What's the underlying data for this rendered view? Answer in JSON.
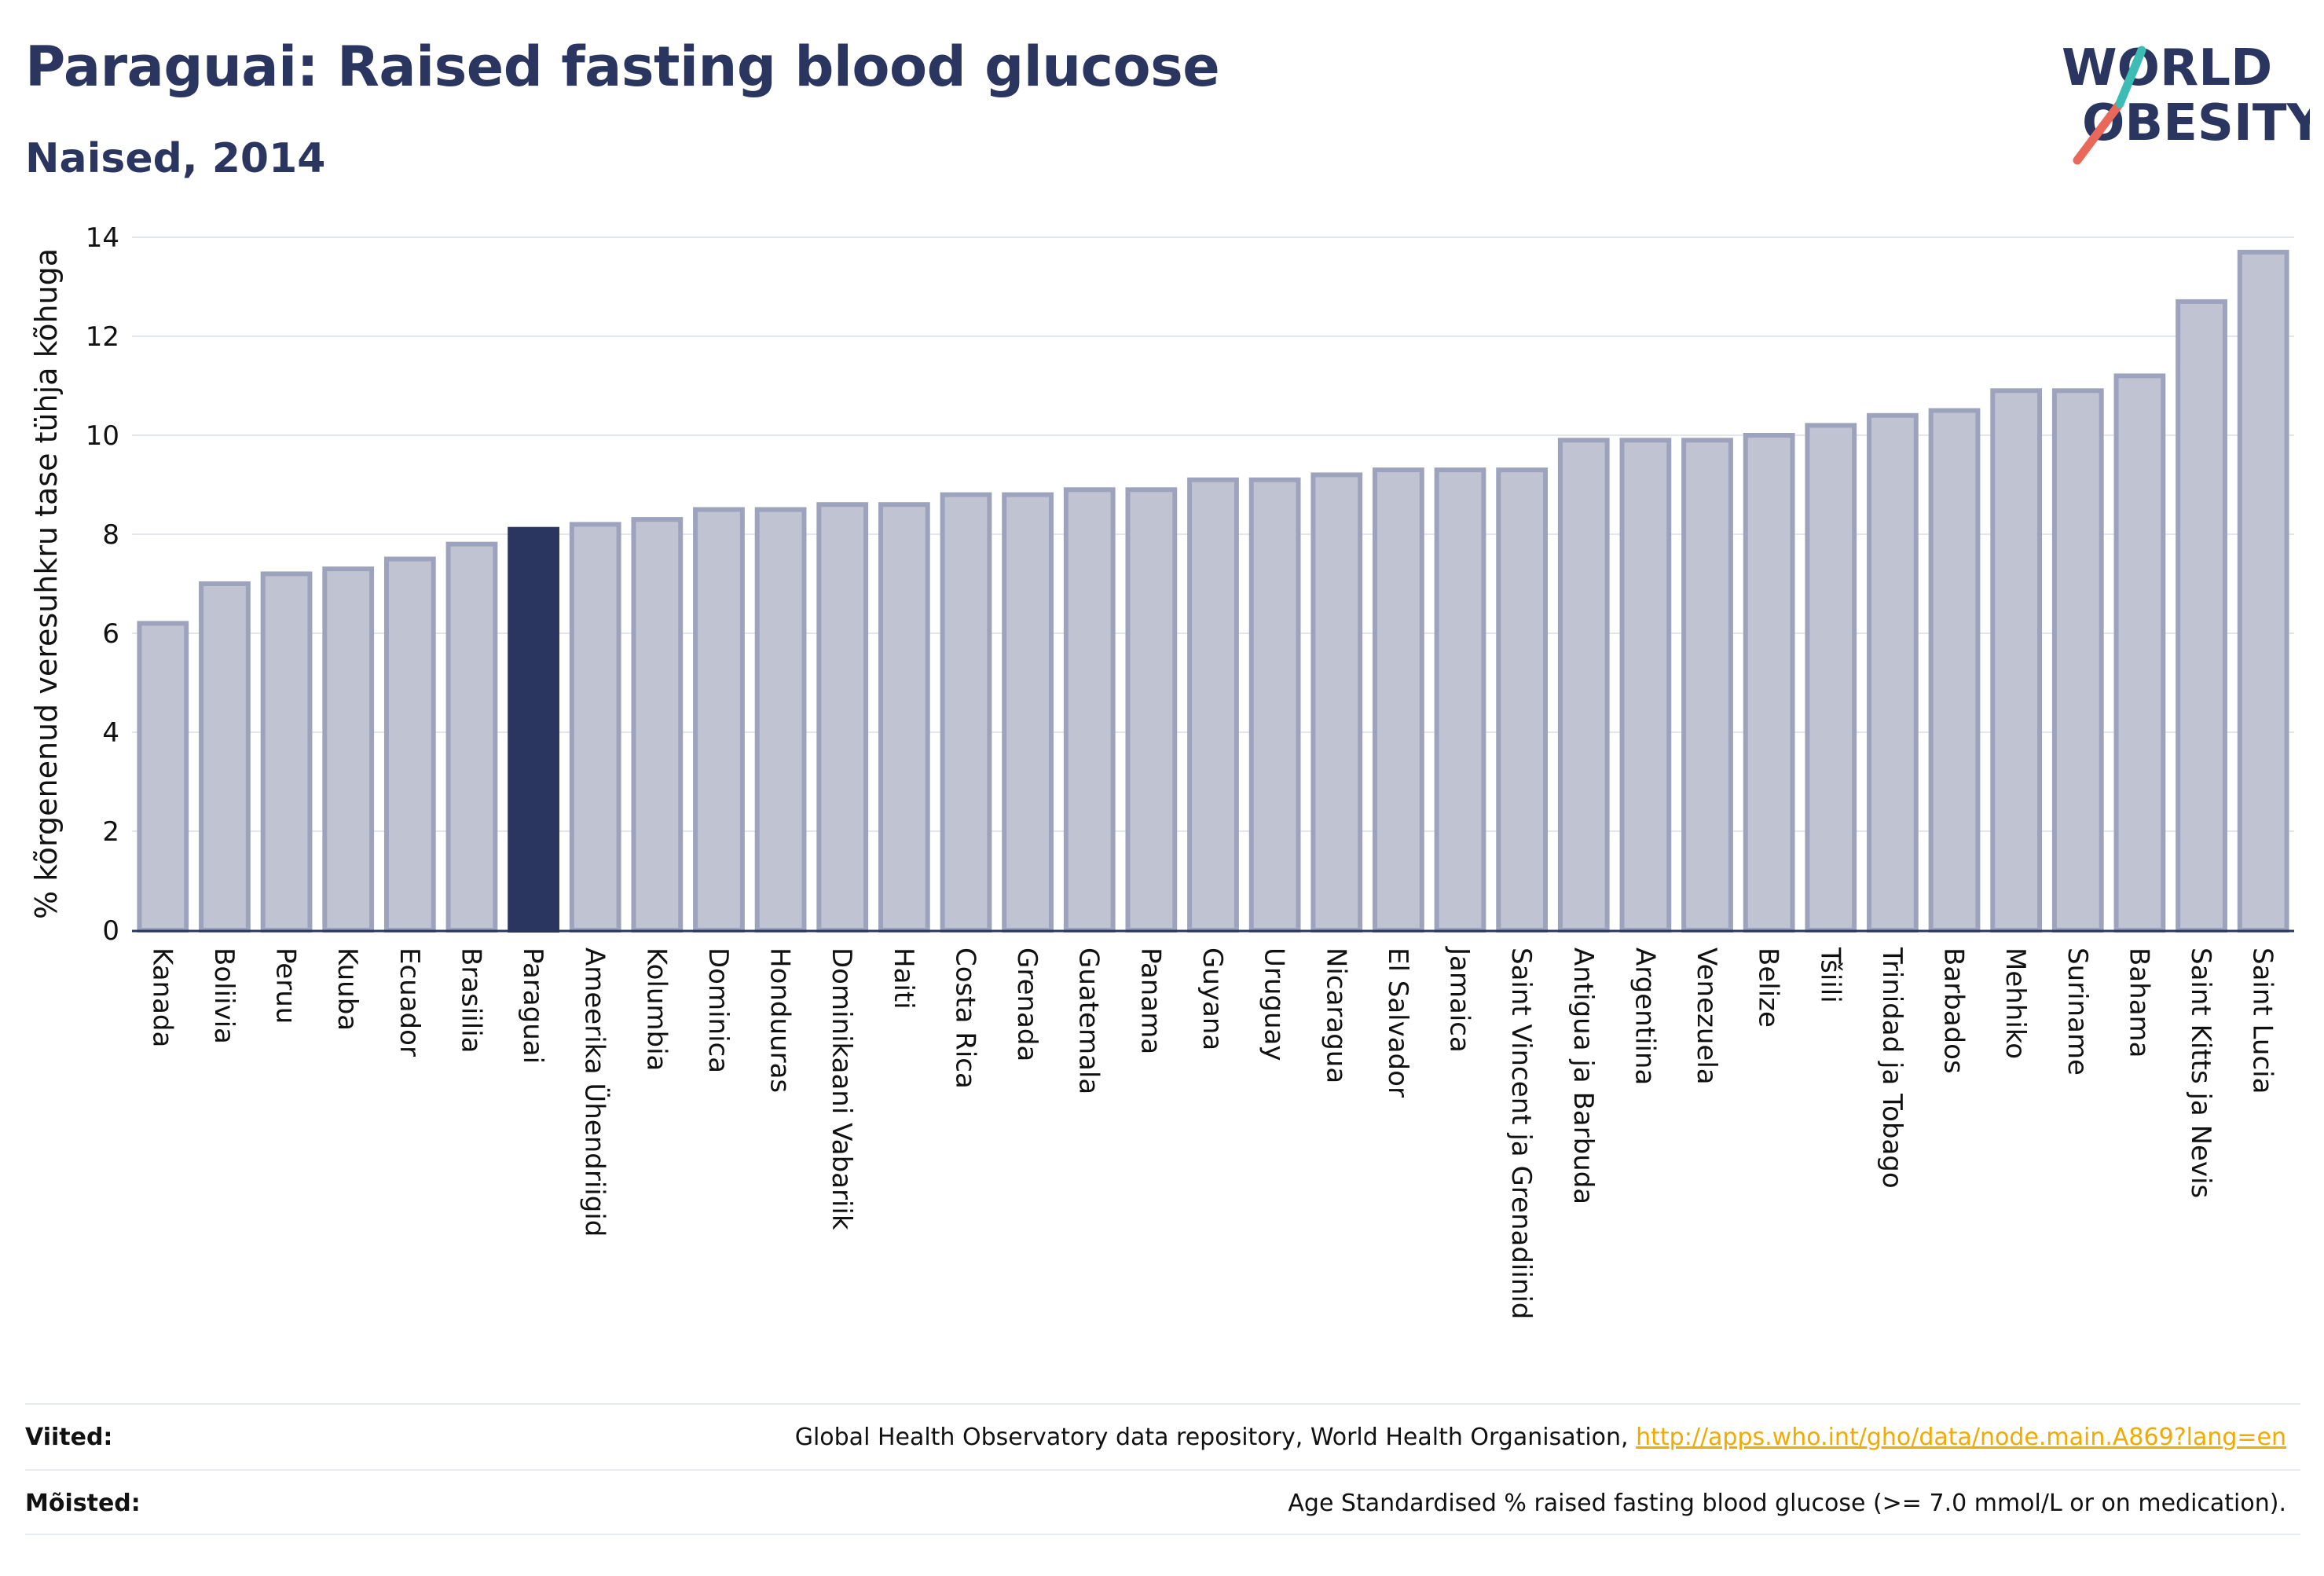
{
  "header": {
    "title": "Paraguai: Raised fasting blood glucose",
    "subtitle": "Naised, 2014"
  },
  "logo": {
    "line1": "WORLD",
    "line2": "OBESITY"
  },
  "colors": {
    "bar": "#c0c4d2",
    "bar_stroke": "#9da3bd",
    "highlight": "#2b3660",
    "grid": "#e4e6ee",
    "text": "#2b3660",
    "link": "#f2a900",
    "logo_red": "#e8685a",
    "logo_teal": "#3cbcb4"
  },
  "chart_data": {
    "type": "bar",
    "ylabel": "% kõrgenenud veresuhkru tase tühja kõhuga",
    "xlabel": "",
    "ylim": [
      0,
      14
    ],
    "yticks": [
      0,
      2,
      4,
      6,
      8,
      10,
      12,
      14
    ],
    "grid": true,
    "highlight": "Paraguai",
    "categories": [
      "Kanada",
      "Boliivia",
      "Peruu",
      "Kuuba",
      "Ecuador",
      "Brasiilia",
      "Paraguai",
      "Ameerika Ühendriigid",
      "Kolumbia",
      "Dominica",
      "Honduuras",
      "Dominikaani Vabariik",
      "Haiti",
      "Costa Rica",
      "Grenada",
      "Guatemala",
      "Panama",
      "Guyana",
      "Uruguay",
      "Nicaragua",
      "El Salvador",
      "Jamaica",
      "Saint Vincent ja Grenadiinid",
      "Antigua ja Barbuda",
      "Argentiina",
      "Venezuela",
      "Belize",
      "Tšiili",
      "Trinidad ja Tobago",
      "Barbados",
      "Mehhiko",
      "Suriname",
      "Bahama",
      "Saint Kitts ja Nevis",
      "Saint Lucia"
    ],
    "values": [
      6.2,
      7.0,
      7.2,
      7.3,
      7.5,
      7.8,
      8.1,
      8.2,
      8.3,
      8.5,
      8.5,
      8.6,
      8.6,
      8.8,
      8.8,
      8.9,
      8.9,
      9.1,
      9.1,
      9.2,
      9.3,
      9.3,
      9.3,
      9.9,
      9.9,
      9.9,
      10.0,
      10.2,
      10.4,
      10.5,
      10.9,
      10.9,
      11.2,
      12.7,
      13.7
    ]
  },
  "footer": {
    "sources_label": "Viited:",
    "sources_text": "Global Health Observatory data repository, World Health Organisation,",
    "sources_link": "http://apps.who.int/gho/data/node.main.A869?lang=en",
    "definitions_label": "Mõisted:",
    "definitions_text": "Age Standardised % raised fasting blood glucose (>= 7.0 mmol/L or on medication)."
  }
}
